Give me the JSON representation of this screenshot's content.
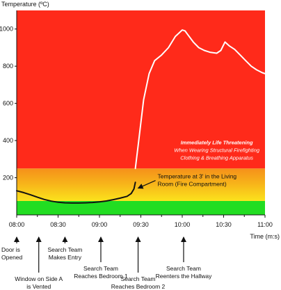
{
  "chart_data": {
    "type": "line",
    "ylabel": "Temperature (ºC)",
    "xlabel": "Time (m:s)",
    "ylim": [
      0,
      1100
    ],
    "yticks": [
      200,
      400,
      600,
      800,
      1000
    ],
    "x_tick_labels": [
      "08:00",
      "08:30",
      "09:00",
      "09:30",
      "10:00",
      "10:30",
      "11:00"
    ],
    "x_tick_seconds": [
      480,
      510,
      540,
      570,
      600,
      630,
      660
    ],
    "x_minor_tick_seconds": [
      495,
      525,
      555,
      585,
      615,
      645
    ],
    "xlim_seconds": [
      480,
      660
    ],
    "grid": false,
    "zones": [
      {
        "name": "green",
        "color": "#22dd22",
        "from": 0,
        "to": 75
      },
      {
        "name": "orange-yellow",
        "color": "#f7b21a",
        "from": 75,
        "to": 250
      },
      {
        "name": "red",
        "color": "#ff2a1a",
        "from": 250,
        "to": 1100
      }
    ],
    "series": [
      {
        "line_color": "#111111",
        "x_seconds": [
          480,
          485,
          490,
          495,
          500,
          505,
          510,
          515,
          520,
          525,
          530,
          535,
          540,
          545,
          550,
          555,
          560,
          563,
          565,
          566
        ],
        "values": [
          130,
          120,
          108,
          95,
          83,
          74,
          68,
          65,
          64,
          64,
          65,
          67,
          70,
          75,
          82,
          90,
          100,
          115,
          140,
          175
        ]
      },
      {
        "line_color": "#ffffff",
        "x_seconds": [
          566,
          568,
          572,
          576,
          580,
          585,
          590,
          595,
          600,
          602,
          604,
          608,
          612,
          616,
          620,
          625,
          628,
          631,
          634,
          638,
          642,
          646,
          650,
          654,
          658,
          662
        ],
        "values": [
          250,
          370,
          620,
          760,
          830,
          860,
          900,
          960,
          995,
          990,
          970,
          930,
          900,
          885,
          875,
          870,
          885,
          930,
          910,
          890,
          860,
          830,
          800,
          780,
          765,
          755
        ]
      }
    ],
    "annotations": [
      {
        "lines": [
          "Temperature at 3' in the Living",
          "Room (Fire Compartment)"
        ],
        "x_seconds": 567,
        "y": 140
      },
      {
        "lines": [
          "Immediately Life Threatening",
          "When Wearing Structural Firefighting",
          "Clothing & Breathing Apparatus"
        ],
        "x_seconds": 620,
        "y": 350
      }
    ],
    "events": [
      {
        "lines": [
          "Door is",
          "Opened"
        ],
        "x_seconds": 480,
        "row": 1
      },
      {
        "lines": [
          "Window on Side A",
          "is Vented"
        ],
        "x_seconds": 496,
        "row": 2
      },
      {
        "lines": [
          "Search Team",
          "Makes Entry"
        ],
        "x_seconds": 515,
        "row": 1
      },
      {
        "lines": [
          "Search Team",
          "Reaches Bedroom 1"
        ],
        "x_seconds": 541,
        "row": 3
      },
      {
        "lines": [
          "Search Team",
          "Reaches Bedroom 2"
        ],
        "x_seconds": 568,
        "row": 2
      },
      {
        "lines": [
          "Search Team",
          "Reenters the Hallway"
        ],
        "x_seconds": 601,
        "row": 3
      }
    ]
  }
}
